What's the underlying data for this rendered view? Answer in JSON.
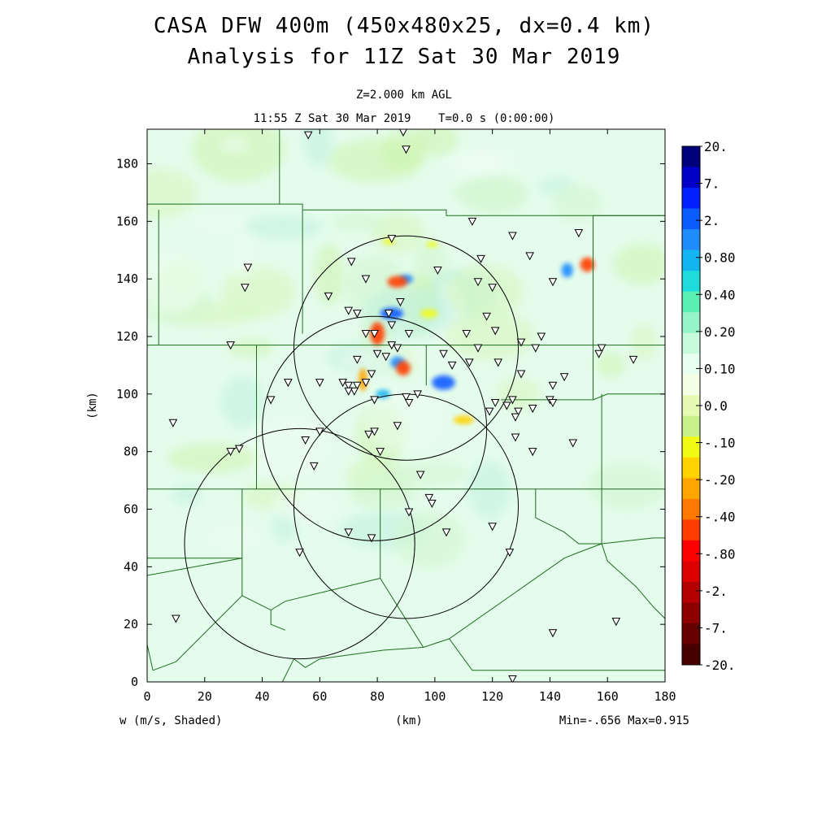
{
  "header": {
    "title_line1": "CASA DFW 400m (450x480x25, dx=0.4 km)",
    "title_line2": "Analysis for 11Z Sat 30 Mar 2019",
    "level": "Z=2.000 km AGL",
    "time": "11:55 Z Sat 30 Mar 2019    T=0.0 s (0:00:00)"
  },
  "footer": {
    "variable": "w (m/s, Shaded)",
    "xunit": "(km)",
    "minmax": "Min=-.656 Max=0.915"
  },
  "chart_data": {
    "type": "heatmap",
    "title": "CASA DFW 400m (450x480x25, dx=0.4 km)",
    "xlabel": "(km)",
    "ylabel": "(km)",
    "xlim": [
      0,
      180
    ],
    "ylim": [
      0,
      192
    ],
    "x_ticks": [
      "0",
      "20",
      "40",
      "60",
      "80",
      "100",
      "120",
      "140",
      "160",
      "180"
    ],
    "y_ticks": [
      "0",
      "20",
      "40",
      "60",
      "80",
      "100",
      "120",
      "140",
      "160",
      "180"
    ],
    "colorbar": {
      "labels": [
        "20.",
        "7.",
        "2.",
        "0.80",
        "0.40",
        "0.20",
        "0.10",
        "0.0",
        "-.10",
        "-.20",
        "-.40",
        "-.80",
        "-2.",
        "-7.",
        "-20."
      ],
      "colors": [
        "#00007a",
        "#0000c8",
        "#0020ff",
        "#0a5cff",
        "#1e8cff",
        "#14b4f0",
        "#1edcdc",
        "#5af0b4",
        "#96f5c8",
        "#c8fadc",
        "#e6fff0",
        "#f5ffe6",
        "#e6fab4",
        "#c8f08c",
        "#f0fa14",
        "#ffd200",
        "#ffa500",
        "#ff7800",
        "#ff3c00",
        "#ff0000",
        "#dc0000",
        "#b40000",
        "#8c0000",
        "#640000",
        "#460000"
      ],
      "range_min": -20,
      "range_max": 20
    },
    "min": -0.656,
    "max": 0.915,
    "radar_rings": [
      {
        "cx": 90,
        "cy": 116,
        "r": 39
      },
      {
        "cx": 79,
        "cy": 88,
        "r": 39
      },
      {
        "cx": 90,
        "cy": 61,
        "r": 39
      },
      {
        "cx": 53,
        "cy": 48,
        "r": 40
      }
    ],
    "features": [
      {
        "cx": 85,
        "cy": 128,
        "rx": 4,
        "ry": 2,
        "value": 0.8
      },
      {
        "cx": 90,
        "cy": 140,
        "rx": 2.5,
        "ry": 1.5,
        "value": 0.4
      },
      {
        "cx": 103,
        "cy": 104,
        "rx": 4,
        "ry": 2.5,
        "value": 0.8
      },
      {
        "cx": 87,
        "cy": 111,
        "rx": 2.5,
        "ry": 2,
        "value": 0.4
      },
      {
        "cx": 146,
        "cy": 143,
        "rx": 2,
        "ry": 2.5,
        "value": 0.5
      },
      {
        "cx": 82,
        "cy": 100,
        "rx": 2.5,
        "ry": 1.5,
        "value": 0.3
      },
      {
        "cx": 87,
        "cy": 139,
        "rx": 3.5,
        "ry": 2,
        "value": -0.6
      },
      {
        "cx": 80,
        "cy": 121,
        "rx": 2.5,
        "ry": 4,
        "value": -0.6
      },
      {
        "cx": 89,
        "cy": 109,
        "rx": 2.5,
        "ry": 2.5,
        "value": -0.656
      },
      {
        "cx": 153,
        "cy": 145,
        "rx": 2.5,
        "ry": 2.5,
        "value": -0.6
      },
      {
        "cx": 110,
        "cy": 91,
        "rx": 3.5,
        "ry": 1.5,
        "value": -0.3
      },
      {
        "cx": 75,
        "cy": 105,
        "rx": 1.5,
        "ry": 4,
        "value": -0.4
      },
      {
        "cx": 98,
        "cy": 128,
        "rx": 3,
        "ry": 1.5,
        "value": -0.2
      },
      {
        "cx": 84,
        "cy": 153,
        "rx": 2,
        "ry": 1,
        "value": -0.2
      },
      {
        "cx": 99,
        "cy": 152,
        "rx": 2,
        "ry": 1,
        "value": -0.2
      }
    ],
    "stations": [
      [
        56,
        190
      ],
      [
        89,
        191
      ],
      [
        90,
        185
      ],
      [
        85,
        154
      ],
      [
        113,
        160
      ],
      [
        127,
        155
      ],
      [
        150,
        156
      ],
      [
        35,
        144
      ],
      [
        71,
        146
      ],
      [
        76,
        140
      ],
      [
        101,
        143
      ],
      [
        116,
        147
      ],
      [
        133,
        148
      ],
      [
        141,
        139
      ],
      [
        34,
        137
      ],
      [
        63,
        134
      ],
      [
        88,
        132
      ],
      [
        115,
        139
      ],
      [
        120,
        137
      ],
      [
        73,
        128
      ],
      [
        70,
        129
      ],
      [
        84,
        128
      ],
      [
        85,
        124
      ],
      [
        76,
        121
      ],
      [
        79,
        121
      ],
      [
        91,
        121
      ],
      [
        118,
        127
      ],
      [
        121,
        122
      ],
      [
        137,
        120
      ],
      [
        111,
        121
      ],
      [
        85,
        117
      ],
      [
        87,
        116
      ],
      [
        80,
        114
      ],
      [
        103,
        114
      ],
      [
        115,
        116
      ],
      [
        130,
        118
      ],
      [
        135,
        116
      ],
      [
        158,
        116
      ],
      [
        157,
        114
      ],
      [
        29,
        117
      ],
      [
        73,
        112
      ],
      [
        83,
        113
      ],
      [
        78,
        107
      ],
      [
        76,
        104
      ],
      [
        70,
        103
      ],
      [
        68,
        104
      ],
      [
        73,
        103
      ],
      [
        72,
        101
      ],
      [
        70,
        101
      ],
      [
        60,
        104
      ],
      [
        49,
        104
      ],
      [
        43,
        98
      ],
      [
        141,
        103
      ],
      [
        145,
        106
      ],
      [
        169,
        112
      ],
      [
        112,
        111
      ],
      [
        122,
        111
      ],
      [
        130,
        107
      ],
      [
        106,
        110
      ],
      [
        90,
        99
      ],
      [
        94,
        100
      ],
      [
        79,
        98
      ],
      [
        91,
        97
      ],
      [
        119,
        94
      ],
      [
        121,
        97
      ],
      [
        127,
        98
      ],
      [
        129,
        94
      ],
      [
        134,
        95
      ],
      [
        140,
        98
      ],
      [
        141,
        97
      ],
      [
        125,
        96
      ],
      [
        128,
        92
      ],
      [
        87,
        89
      ],
      [
        79,
        87
      ],
      [
        77,
        86
      ],
      [
        60,
        87
      ],
      [
        55,
        84
      ],
      [
        148,
        83
      ],
      [
        128,
        85
      ],
      [
        9,
        90
      ],
      [
        32,
        81
      ],
      [
        29,
        80
      ],
      [
        81,
        80
      ],
      [
        134,
        80
      ],
      [
        58,
        75
      ],
      [
        95,
        72
      ],
      [
        98,
        64
      ],
      [
        99,
        62
      ],
      [
        91,
        59
      ],
      [
        70,
        52
      ],
      [
        78,
        50
      ],
      [
        104,
        52
      ],
      [
        120,
        54
      ],
      [
        126,
        45
      ],
      [
        53,
        45
      ],
      [
        10,
        22
      ],
      [
        141,
        17
      ],
      [
        163,
        21
      ],
      [
        127,
        1
      ]
    ],
    "county_lines": [
      [
        [
          0,
          193
        ],
        [
          180,
          193
        ]
      ],
      [
        [
          46,
          193
        ],
        [
          46,
          166
        ]
      ],
      [
        [
          0,
          166
        ],
        [
          54,
          166
        ],
        [
          54,
          164
        ]
      ],
      [
        [
          54,
          164
        ],
        [
          104,
          164
        ],
        [
          104,
          162
        ],
        [
          180,
          162
        ]
      ],
      [
        [
          0,
          166
        ],
        [
          0,
          0
        ]
      ],
      [
        [
          180,
          193
        ],
        [
          180,
          0
        ]
      ],
      [
        [
          4,
          164
        ],
        [
          4,
          117
        ]
      ],
      [
        [
          54,
          164
        ],
        [
          54,
          121
        ]
      ],
      [
        [
          104,
          164
        ],
        [
          104,
          162
        ]
      ],
      [
        [
          155,
          162
        ],
        [
          155,
          116
        ]
      ],
      [
        [
          155,
          162
        ],
        [
          180,
          162
        ]
      ],
      [
        [
          0,
          117
        ],
        [
          180,
          117
        ]
      ],
      [
        [
          38,
          117
        ],
        [
          38,
          67
        ]
      ],
      [
        [
          97,
          117
        ],
        [
          97,
          103
        ]
      ],
      [
        [
          155,
          116
        ],
        [
          155,
          98
        ]
      ],
      [
        [
          123,
          98
        ],
        [
          155,
          98
        ]
      ],
      [
        [
          155,
          98
        ],
        [
          160,
          100
        ],
        [
          180,
          100
        ]
      ],
      [
        [
          0,
          67
        ],
        [
          180,
          67
        ]
      ],
      [
        [
          33,
          67
        ],
        [
          33,
          43
        ]
      ],
      [
        [
          81,
          67
        ],
        [
          81,
          36
        ]
      ],
      [
        [
          135,
          67
        ],
        [
          135,
          57
        ]
      ],
      [
        [
          135,
          57
        ],
        [
          145,
          52
        ],
        [
          150,
          48
        ],
        [
          158,
          48
        ]
      ],
      [
        [
          158,
          48
        ],
        [
          158,
          100
        ]
      ],
      [
        [
          158,
          48
        ],
        [
          176,
          50
        ],
        [
          180,
          50
        ]
      ],
      [
        [
          0,
          43
        ],
        [
          33,
          43
        ]
      ],
      [
        [
          0,
          37
        ],
        [
          33,
          43
        ]
      ],
      [
        [
          33,
          43
        ],
        [
          33,
          30
        ],
        [
          10,
          7
        ],
        [
          2,
          4
        ]
      ],
      [
        [
          33,
          30
        ],
        [
          43,
          25
        ],
        [
          43,
          20
        ],
        [
          48,
          18
        ]
      ],
      [
        [
          81,
          36
        ],
        [
          48,
          28
        ],
        [
          43,
          25
        ]
      ],
      [
        [
          81,
          36
        ],
        [
          96,
          12
        ]
      ],
      [
        [
          96,
          12
        ],
        [
          105,
          15
        ],
        [
          145,
          43
        ],
        [
          150,
          45
        ],
        [
          158,
          48
        ]
      ],
      [
        [
          105,
          15
        ],
        [
          113,
          4
        ]
      ],
      [
        [
          113,
          4
        ],
        [
          180,
          4
        ]
      ],
      [
        [
          0,
          13
        ],
        [
          2,
          4
        ]
      ],
      [
        [
          47,
          0
        ],
        [
          51,
          8
        ],
        [
          55,
          5
        ],
        [
          60,
          8
        ],
        [
          82,
          11
        ],
        [
          96,
          12
        ]
      ],
      [
        [
          158,
          48
        ],
        [
          160,
          42
        ],
        [
          170,
          33
        ],
        [
          176,
          26
        ],
        [
          180,
          22
        ]
      ]
    ]
  }
}
